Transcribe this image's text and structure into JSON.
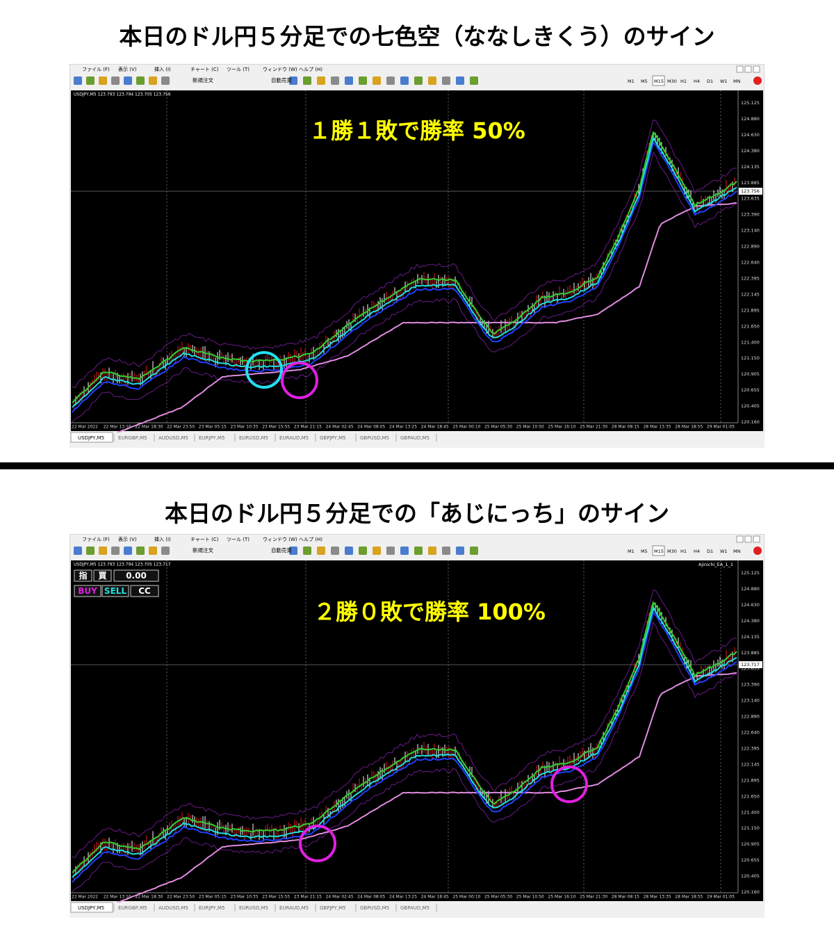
{
  "panels": [
    {
      "heading": "本日のドル円５分足での七色空（ななしきくう）のサイン",
      "menu": [
        "ファイル (F)",
        "表示 (V)",
        "挿入 (I)",
        "チャート (C)",
        "ツール (T)",
        "ウィンドウ (W)",
        "ヘルプ (H)"
      ],
      "toolbar": [
        "新規注文",
        "自動売買"
      ],
      "timeframes": [
        "M1",
        "M5",
        "M15",
        "M30",
        "H1",
        "H4",
        "D1",
        "W1",
        "MN"
      ],
      "symbol_info": "USDJPY,M5  123.793 123.794 123.705 123.756",
      "overlay": "１勝１敗で勝率 50%",
      "current_price": "123.756",
      "price_labels": [
        "125.125",
        "124.880",
        "124.630",
        "124.380",
        "124.135",
        "123.885",
        "123.635",
        "123.390",
        "123.140",
        "122.890",
        "122.640",
        "122.395",
        "122.145",
        "121.895",
        "121.650",
        "121.400",
        "121.150",
        "120.905",
        "120.655",
        "120.405",
        "120.160"
      ],
      "time_labels": [
        "22 Mar 2022",
        "22 Mar 13:10",
        "22 Mar 18:30",
        "22 Mar 23:50",
        "23 Mar 05:15",
        "23 Mar 10:35",
        "23 Mar 15:55",
        "23 Mar 21:15",
        "24 Mar 02:45",
        "24 Mar 08:05",
        "24 Mar 13:25",
        "24 Mar 18:45",
        "25 Mar 00:10",
        "25 Mar 05:30",
        "25 Mar 10:50",
        "25 Mar 16:10",
        "25 Mar 21:30",
        "28 Mar 08:15",
        "28 Mar 13:35",
        "28 Mar 18:55",
        "29 Mar 01:05"
      ],
      "tabs": [
        "USDJPY,M5",
        "EURGBP,M5",
        "AUDUSD,M5",
        "EURJPY,M5",
        "EURUSD,M5",
        "EURAUD,M5",
        "GBPJPY,M5",
        "GBPUSD,M5",
        "GBPAUD,M5"
      ]
    },
    {
      "heading": "本日のドル円５分足での「あじにっち」のサイン",
      "menu": [
        "ファイル (F)",
        "表示 (V)",
        "挿入 (I)",
        "チャート (C)",
        "ツール (T)",
        "ウィンドウ (W)",
        "ヘルプ (H)"
      ],
      "toolbar": [
        "新規注文",
        "自動売買"
      ],
      "timeframes": [
        "M1",
        "M5",
        "M15",
        "M30",
        "H1",
        "H4",
        "D1",
        "W1",
        "MN"
      ],
      "symbol_info": "USDJPY,M5  123.793 123.794 123.705 123.717",
      "ea_name": "Ajinichi_EA_1_1",
      "buttons": [
        "指",
        "買",
        "0.00",
        "BUY",
        "SELL",
        "CC"
      ],
      "overlay": "２勝０敗で勝率 100%",
      "current_price": "123.717",
      "price_labels": [
        "125.125",
        "124.880",
        "124.630",
        "124.380",
        "124.135",
        "123.885",
        "123.635",
        "123.390",
        "123.140",
        "122.890",
        "122.640",
        "122.395",
        "122.145",
        "121.895",
        "121.650",
        "121.400",
        "121.150",
        "120.905",
        "120.655",
        "120.405",
        "120.160"
      ],
      "time_labels": [
        "22 Mar 2022",
        "22 Mar 13:10",
        "22 Mar 18:30",
        "22 Mar 23:50",
        "23 Mar 05:15",
        "23 Mar 10:35",
        "23 Mar 15:55",
        "23 Mar 21:15",
        "24 Mar 02:45",
        "24 Mar 08:05",
        "24 Mar 13:25",
        "24 Mar 18:45",
        "25 Mar 00:10",
        "25 Mar 05:30",
        "25 Mar 10:50",
        "25 Mar 16:10",
        "25 Mar 21:30",
        "28 Mar 08:15",
        "28 Mar 13:35",
        "28 Mar 18:55",
        "29 Mar 01:05"
      ],
      "tabs": [
        "USDJPY,M5",
        "EURGBP,M5",
        "AUDUSD,M5",
        "EURJPY,M5",
        "EURUSD,M5",
        "EURAUD,M5",
        "GBPJPY,M5",
        "GBPUSD,M5",
        "GBPAUD,M5"
      ]
    }
  ]
}
